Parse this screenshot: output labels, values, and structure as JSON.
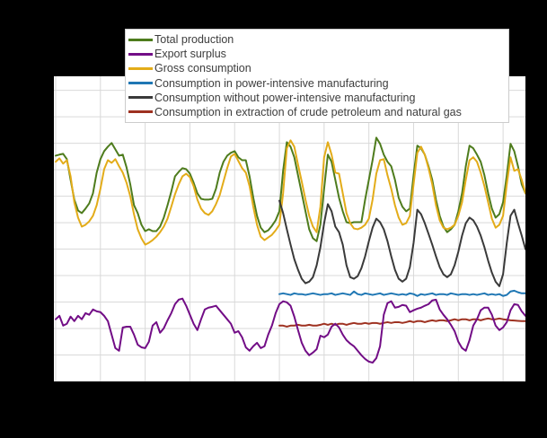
{
  "chart_data": {
    "type": "line",
    "title": "",
    "xlabel": "",
    "ylabel": "",
    "axis_tick_labels_visible": false,
    "x_unit": "months",
    "n_months": 127,
    "ylim": [
      0,
      11530
    ],
    "y_per_gridline": 1000,
    "x_gridline_step_months": 12,
    "grid": true,
    "legend_position": "top",
    "background_color": "#000000",
    "plot_background_color": "#ffffff",
    "gridline_color": "#d9d9d9",
    "series": [
      {
        "name": "Total production",
        "color": "#4e7c1d",
        "start_month": 0,
        "values": [
          8530,
          8570,
          8600,
          8400,
          7620,
          6870,
          6460,
          6360,
          6530,
          6730,
          7110,
          7890,
          8400,
          8700,
          8870,
          9010,
          8770,
          8530,
          8570,
          8090,
          7450,
          6660,
          6360,
          5920,
          5680,
          5750,
          5680,
          5680,
          5850,
          6190,
          6660,
          7170,
          7750,
          7920,
          8060,
          8020,
          7850,
          7510,
          7110,
          6900,
          6870,
          6870,
          6900,
          7280,
          7890,
          8300,
          8530,
          8640,
          8700,
          8470,
          8360,
          8360,
          7750,
          6940,
          6260,
          5810,
          5640,
          5710,
          5880,
          6090,
          6430,
          7960,
          9040,
          8870,
          8470,
          7790,
          7110,
          6430,
          5750,
          5410,
          5300,
          5920,
          7280,
          8570,
          8300,
          7620,
          6940,
          6430,
          6020,
          5980,
          6020,
          6020,
          6020,
          6870,
          7620,
          8360,
          9210,
          8980,
          8570,
          8300,
          8130,
          7620,
          6940,
          6600,
          6430,
          6530,
          7790,
          8910,
          8810,
          8570,
          8130,
          7620,
          6870,
          6260,
          5850,
          5640,
          5750,
          5920,
          6430,
          7110,
          8130,
          8910,
          8810,
          8570,
          8300,
          7790,
          7110,
          6530,
          6190,
          6320,
          6770,
          7790,
          8980,
          8700,
          8130,
          7450,
          7110
        ]
      },
      {
        "name": "Export surplus",
        "color": "#720d86",
        "start_month": 0,
        "values": [
          2350,
          2480,
          2110,
          2180,
          2450,
          2280,
          2480,
          2350,
          2580,
          2520,
          2720,
          2650,
          2620,
          2480,
          2280,
          1770,
          1260,
          1160,
          2040,
          2070,
          2070,
          1770,
          1390,
          1290,
          1260,
          1500,
          2110,
          2240,
          1840,
          2010,
          2310,
          2580,
          2920,
          3090,
          3130,
          2860,
          2520,
          2180,
          1940,
          2350,
          2720,
          2790,
          2820,
          2860,
          2690,
          2520,
          2350,
          2180,
          1840,
          1900,
          1670,
          1290,
          1160,
          1330,
          1460,
          1260,
          1330,
          1770,
          2110,
          2580,
          2920,
          3030,
          2990,
          2860,
          2450,
          1940,
          1460,
          1160,
          990,
          1090,
          1220,
          1730,
          1670,
          1770,
          2070,
          2180,
          2040,
          1770,
          1560,
          1430,
          1330,
          1160,
          990,
          850,
          750,
          710,
          880,
          1330,
          2520,
          2960,
          3030,
          2790,
          2820,
          2890,
          2860,
          2620,
          2690,
          2750,
          2790,
          2860,
          2920,
          3060,
          3090,
          2720,
          2520,
          2350,
          2140,
          1900,
          1500,
          1260,
          1160,
          1560,
          2110,
          2350,
          2690,
          2790,
          2790,
          2520,
          2110,
          1940,
          2040,
          2240,
          2690,
          2920,
          2890,
          2650,
          2480
        ]
      },
      {
        "name": "Gross consumption",
        "color": "#e3ac19",
        "start_month": 0,
        "values": [
          8300,
          8430,
          8230,
          8360,
          7750,
          6770,
          6190,
          5850,
          5920,
          6050,
          6260,
          6660,
          7280,
          8020,
          8360,
          8260,
          8400,
          8130,
          7890,
          7510,
          7000,
          6320,
          5750,
          5410,
          5170,
          5240,
          5340,
          5470,
          5640,
          5850,
          6150,
          6600,
          7070,
          7450,
          7750,
          7850,
          7720,
          7380,
          6870,
          6530,
          6360,
          6290,
          6430,
          6700,
          7040,
          7550,
          8060,
          8500,
          8600,
          8330,
          8060,
          7890,
          7380,
          6600,
          5920,
          5470,
          5340,
          5440,
          5540,
          5710,
          5920,
          7110,
          8810,
          9110,
          8870,
          8190,
          7550,
          6870,
          6260,
          5850,
          5640,
          6600,
          8470,
          9040,
          8570,
          7890,
          7850,
          7110,
          6360,
          5980,
          5780,
          5750,
          5810,
          5920,
          6150,
          6870,
          7850,
          8360,
          8400,
          7790,
          7280,
          6660,
          6190,
          5920,
          5980,
          6260,
          7450,
          8640,
          8870,
          8570,
          8060,
          7450,
          6660,
          6090,
          5810,
          5750,
          5810,
          5920,
          6260,
          6770,
          7620,
          8360,
          8470,
          8300,
          7890,
          7380,
          6770,
          6150,
          5810,
          5920,
          6260,
          7450,
          8470,
          7960,
          8020,
          7620,
          7110
        ]
      },
      {
        "name": "Consumption in power-intensive manufacturing",
        "color": "#1f77b4",
        "start_month": 60,
        "values": [
          3300,
          3330,
          3300,
          3270,
          3330,
          3300,
          3300,
          3270,
          3300,
          3330,
          3300,
          3270,
          3300,
          3300,
          3330,
          3270,
          3300,
          3330,
          3300,
          3270,
          3400,
          3300,
          3270,
          3330,
          3300,
          3270,
          3300,
          3330,
          3270,
          3300,
          3330,
          3300,
          3270,
          3300,
          3270,
          3330,
          3300,
          3230,
          3300,
          3270,
          3300,
          3330,
          3270,
          3300,
          3300,
          3270,
          3330,
          3300,
          3270,
          3300,
          3300,
          3270,
          3300,
          3270,
          3300,
          3330,
          3270,
          3300,
          3270,
          3300,
          3230,
          3270,
          3400,
          3430,
          3370,
          3330,
          3330
        ]
      },
      {
        "name": "Consumption without power-intensive manufacturing",
        "color": "#3a3a3a",
        "start_month": 60,
        "values": [
          6830,
          6360,
          5750,
          5170,
          4620,
          4220,
          3880,
          3710,
          3770,
          3940,
          4390,
          5070,
          5980,
          6700,
          6430,
          5850,
          5640,
          5170,
          4390,
          3940,
          3880,
          3980,
          4280,
          4730,
          5300,
          5810,
          6150,
          6020,
          5750,
          5300,
          4730,
          4220,
          3880,
          3770,
          3880,
          4320,
          5240,
          6490,
          6320,
          5980,
          5580,
          5170,
          4730,
          4320,
          4050,
          3940,
          4050,
          4390,
          4900,
          5510,
          5980,
          6190,
          6090,
          5850,
          5510,
          5070,
          4560,
          4110,
          3770,
          3600,
          4050,
          5240,
          6260,
          6490,
          5980,
          5510,
          5000
        ]
      },
      {
        "name": "Consumption in extraction of crude petroleum and natural gas",
        "color": "#9e3120",
        "start_month": 60,
        "values": [
          2110,
          2110,
          2070,
          2110,
          2110,
          2140,
          2110,
          2110,
          2140,
          2110,
          2110,
          2140,
          2180,
          2140,
          2180,
          2140,
          2180,
          2180,
          2140,
          2180,
          2210,
          2180,
          2180,
          2210,
          2180,
          2210,
          2210,
          2180,
          2210,
          2240,
          2210,
          2240,
          2240,
          2210,
          2240,
          2280,
          2240,
          2280,
          2280,
          2240,
          2280,
          2310,
          2280,
          2310,
          2310,
          2280,
          2310,
          2350,
          2310,
          2350,
          2350,
          2310,
          2350,
          2350,
          2310,
          2350,
          2380,
          2350,
          2350,
          2380,
          2350,
          2330,
          2310,
          2300,
          2290,
          2280,
          2280
        ]
      }
    ]
  },
  "legend": {
    "items": [
      {
        "label": "Total production"
      },
      {
        "label": "Export surplus"
      },
      {
        "label": "Gross consumption"
      },
      {
        "label": "Consumption in power-intensive manufacturing"
      },
      {
        "label": "Consumption without power-intensive manufacturing"
      },
      {
        "label": "Consumption in extraction of crude petroleum and natural gas"
      }
    ]
  }
}
